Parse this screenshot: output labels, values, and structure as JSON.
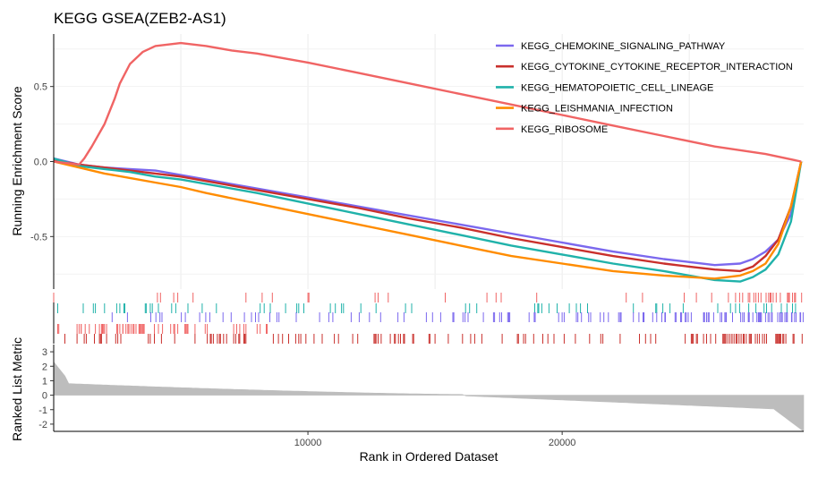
{
  "chart_data": {
    "type": "line",
    "title": "KEGG GSEA(ZEB2-AS1)",
    "xlabel": "Rank in Ordered Dataset",
    "ylabel_top": "Running Enrichment Score",
    "ylabel_bottom": "Ranked List Metric",
    "xlim": [
      0,
      29500
    ],
    "x_ticks": [
      10000,
      20000
    ],
    "es_ylim": [
      -0.85,
      0.85
    ],
    "es_ticks": [
      0.5,
      0.0,
      -0.5
    ],
    "es_tick_labels": [
      "0.5",
      "0.0",
      "-0.5"
    ],
    "metric_ylim": [
      -2.5,
      3.5
    ],
    "metric_ticks": [
      3,
      2,
      1,
      0,
      -1,
      -2
    ],
    "grid": true,
    "legend_position": "top-right",
    "series": [
      {
        "name": "KEGG_CHEMOKINE_SIGNALING_PATHWAY",
        "color": "#7b68ee",
        "x": [
          0,
          1000,
          2000,
          3000,
          4000,
          5000,
          6000,
          8000,
          10000,
          12000,
          14000,
          16000,
          18000,
          20000,
          22000,
          24000,
          25000,
          26000,
          27000,
          27500,
          28000,
          28500,
          29000,
          29400
        ],
        "y": [
          0.02,
          -0.02,
          -0.04,
          -0.05,
          -0.06,
          -0.09,
          -0.12,
          -0.18,
          -0.24,
          -0.3,
          -0.36,
          -0.42,
          -0.48,
          -0.54,
          -0.6,
          -0.65,
          -0.67,
          -0.69,
          -0.68,
          -0.65,
          -0.6,
          -0.52,
          -0.35,
          0.0
        ]
      },
      {
        "name": "KEGG_CYTOKINE_CYTOKINE_RECEPTOR_INTERACTION",
        "color": "#c9302c",
        "x": [
          0,
          1000,
          2000,
          3000,
          4000,
          5000,
          6000,
          8000,
          10000,
          12000,
          14000,
          16000,
          18000,
          20000,
          22000,
          24000,
          25000,
          26000,
          27000,
          27500,
          28000,
          28500,
          29000,
          29400
        ],
        "y": [
          0.01,
          -0.02,
          -0.04,
          -0.06,
          -0.08,
          -0.1,
          -0.13,
          -0.19,
          -0.25,
          -0.31,
          -0.38,
          -0.44,
          -0.51,
          -0.57,
          -0.63,
          -0.68,
          -0.7,
          -0.72,
          -0.73,
          -0.7,
          -0.63,
          -0.52,
          -0.3,
          0.0
        ]
      },
      {
        "name": "KEGG_HEMATOPOIETIC_CELL_LINEAGE",
        "color": "#20b2aa",
        "x": [
          0,
          1000,
          2000,
          3000,
          4000,
          5000,
          6000,
          8000,
          10000,
          12000,
          14000,
          16000,
          18000,
          20000,
          22000,
          24000,
          25000,
          26000,
          27000,
          27500,
          28000,
          28500,
          29000,
          29400
        ],
        "y": [
          0.02,
          -0.03,
          -0.05,
          -0.07,
          -0.1,
          -0.12,
          -0.15,
          -0.21,
          -0.28,
          -0.35,
          -0.42,
          -0.49,
          -0.56,
          -0.62,
          -0.68,
          -0.73,
          -0.76,
          -0.79,
          -0.8,
          -0.77,
          -0.72,
          -0.62,
          -0.4,
          0.0
        ]
      },
      {
        "name": "KEGG_LEISHMANIA_INFECTION",
        "color": "#ff8c00",
        "x": [
          0,
          1000,
          2000,
          3000,
          4000,
          5000,
          6000,
          8000,
          10000,
          12000,
          14000,
          16000,
          18000,
          20000,
          22000,
          24000,
          25000,
          26000,
          27000,
          27500,
          28000,
          28500,
          29000,
          29400
        ],
        "y": [
          0.0,
          -0.04,
          -0.08,
          -0.11,
          -0.14,
          -0.17,
          -0.21,
          -0.28,
          -0.35,
          -0.42,
          -0.49,
          -0.56,
          -0.63,
          -0.68,
          -0.73,
          -0.76,
          -0.77,
          -0.78,
          -0.76,
          -0.73,
          -0.68,
          -0.55,
          -0.3,
          0.0
        ]
      },
      {
        "name": "KEGG_RIBOSOME",
        "color": "#f06464",
        "x": [
          0,
          1000,
          1200,
          1500,
          2000,
          2400,
          2600,
          3000,
          3500,
          4000,
          5000,
          6000,
          7000,
          8000,
          10000,
          12000,
          14000,
          16000,
          18000,
          20000,
          22000,
          24000,
          26000,
          28000,
          29400
        ],
        "y": [
          0.0,
          -0.02,
          0.02,
          0.1,
          0.25,
          0.42,
          0.52,
          0.65,
          0.73,
          0.77,
          0.79,
          0.77,
          0.74,
          0.72,
          0.66,
          0.59,
          0.52,
          0.45,
          0.38,
          0.31,
          0.24,
          0.17,
          0.1,
          0.05,
          0.0
        ]
      }
    ]
  }
}
